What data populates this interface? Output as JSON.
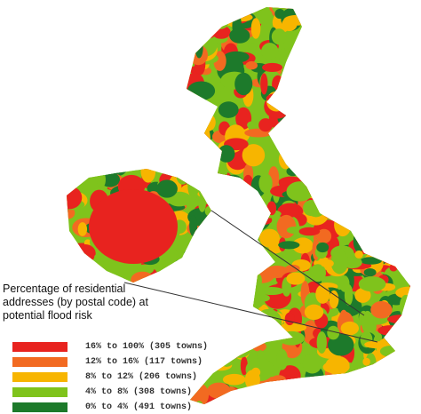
{
  "legend": {
    "title": "Percentage of residential addresses (by postal code) at potential flood risk",
    "items": [
      {
        "label": "16% to 100% (305 towns)",
        "color": "#e8231f"
      },
      {
        "label": "12% to 16% (117 towns)",
        "color": "#f26a21"
      },
      {
        "label": "8% to 12% (206 towns)",
        "color": "#f7b500"
      },
      {
        "label": "4% to 8% (308 towns)",
        "color": "#7fc31c"
      },
      {
        "label": "0% to 4% (491 towns)",
        "color": "#1d7a2b"
      }
    ]
  }
}
